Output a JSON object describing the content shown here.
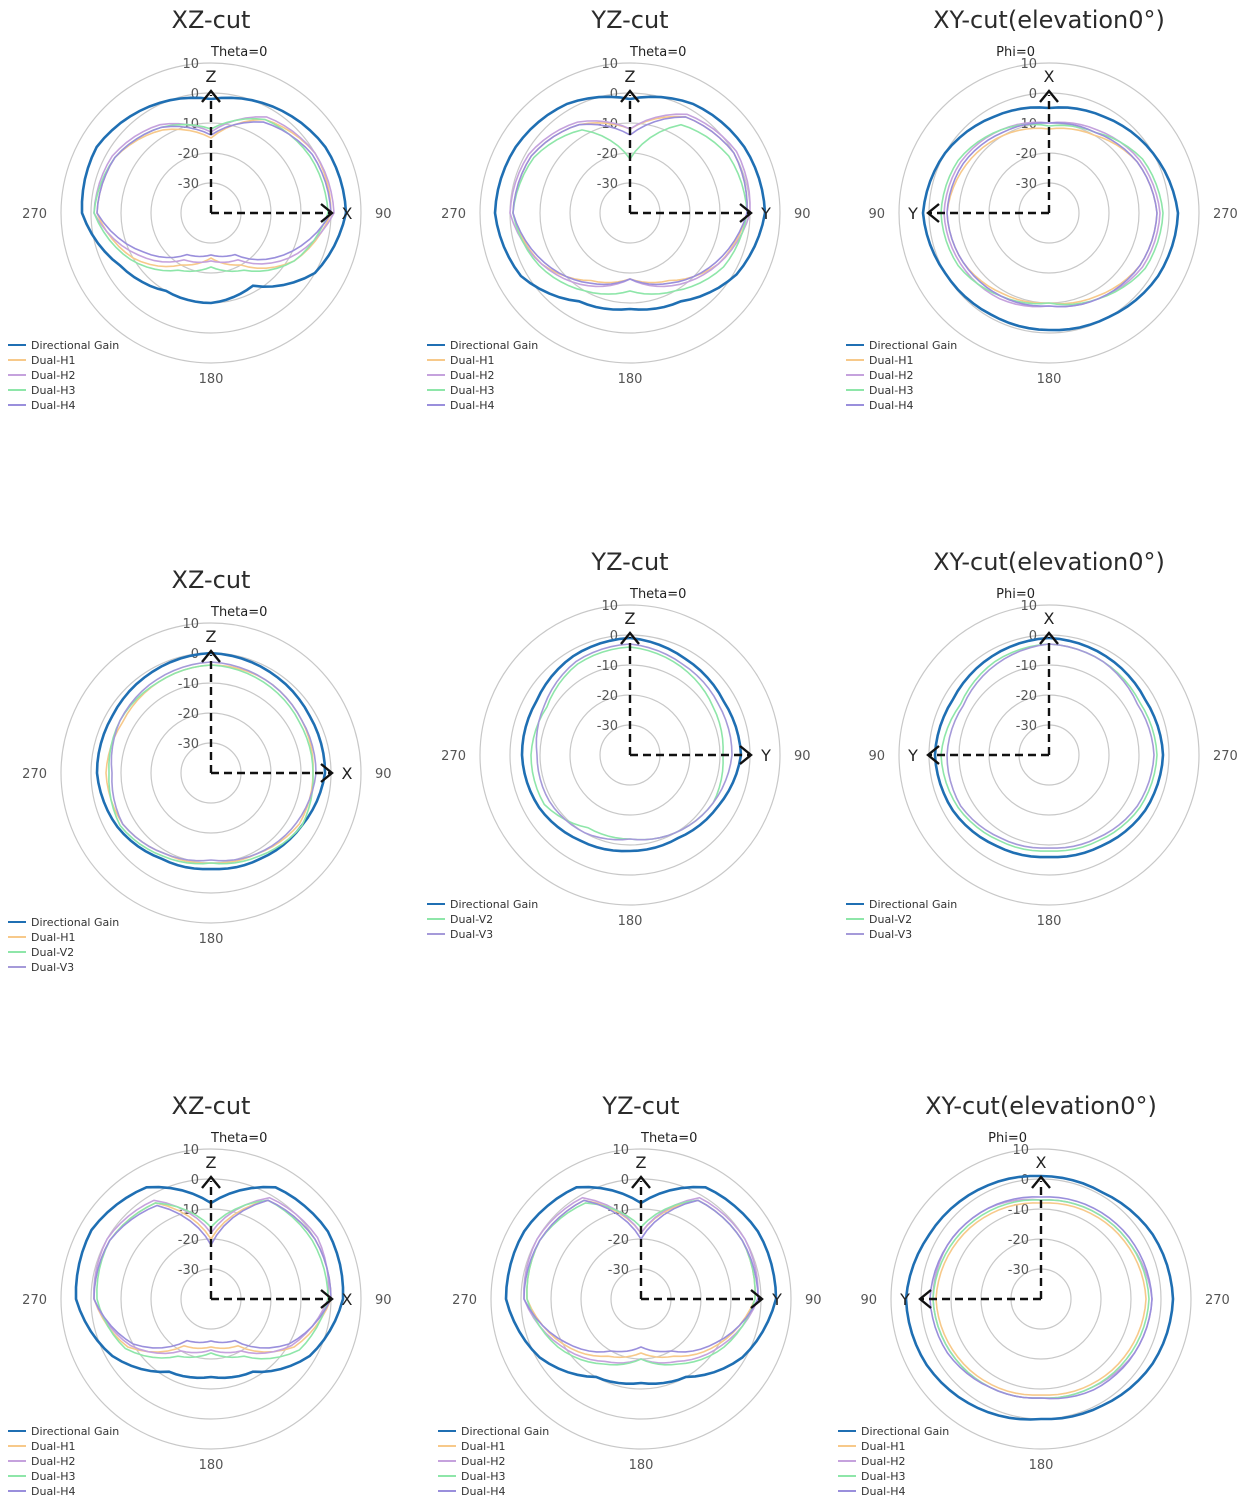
{
  "ring_db": [
    10,
    0,
    -10,
    -20,
    -30
  ],
  "axis_glyphs": {
    "z": "Z",
    "x": "X",
    "y": "Y"
  },
  "colors": {
    "Directional Gain": "#1f6fb3",
    "Dual-H1": "#f7c98a",
    "Dual-H2": "#c5a2dd",
    "Dual-H3": "#8ee6a9",
    "Dual-H4": "#9a8fdc",
    "Dual-V2": "#8ee6a9",
    "Dual-V3": "#a59ad9"
  },
  "chart_data": [
    {
      "type": "polar",
      "title": "XZ-cut",
      "zero_label": "Theta=0",
      "angle_labels": {
        "left": "270",
        "right": "90",
        "bottom": "180"
      },
      "axes": {
        "up": "Z",
        "side": "X",
        "side_dir": "right"
      },
      "rlim": [
        -40,
        10
      ],
      "rings": [
        10,
        0,
        -10,
        -20,
        -30
      ],
      "direction": "clockwise",
      "angles_deg": [
        0,
        30,
        60,
        90,
        120,
        150,
        180,
        210,
        240,
        270,
        300,
        330
      ],
      "series": [
        {
          "name": "Directional Gain",
          "values": [
            -2,
            1,
            4,
            5,
            0,
            -12,
            -10,
            -10,
            -5,
            3,
            4,
            1
          ]
        },
        {
          "name": "Dual-H1",
          "values": [
            -15,
            -4,
            0,
            0,
            -8,
            -20,
            -25,
            -20,
            -10,
            -2,
            -3,
            -8
          ]
        },
        {
          "name": "Dual-H2",
          "values": [
            -13,
            -3,
            0,
            1,
            -10,
            -22,
            -24,
            -22,
            -12,
            -1,
            -2,
            -6
          ]
        },
        {
          "name": "Dual-H3",
          "values": [
            -12,
            -4,
            -2,
            -1,
            -8,
            -18,
            -22,
            -18,
            -9,
            -1,
            -3,
            -7
          ]
        },
        {
          "name": "Dual-H4",
          "values": [
            -14,
            -5,
            -1,
            0,
            -12,
            -24,
            -26,
            -24,
            -14,
            -2,
            -3,
            -7
          ]
        }
      ]
    },
    {
      "type": "polar",
      "title": "YZ-cut",
      "zero_label": "Theta=0",
      "angle_labels": {
        "left": "270",
        "right": "90",
        "bottom": "180"
      },
      "axes": {
        "up": "Z",
        "side": "Y",
        "side_dir": "right"
      },
      "rlim": [
        -40,
        10
      ],
      "rings": [
        10,
        0,
        -10,
        -20,
        -30
      ],
      "direction": "clockwise",
      "angles_deg": [
        0,
        30,
        60,
        90,
        120,
        150,
        180,
        210,
        240,
        270,
        300,
        330
      ],
      "series": [
        {
          "name": "Directional Gain",
          "values": [
            -2,
            2,
            4,
            5,
            1,
            -6,
            -8,
            -6,
            2,
            5,
            4,
            2
          ]
        },
        {
          "name": "Dual-H1",
          "values": [
            -12,
            -3,
            0,
            -1,
            -6,
            -14,
            -18,
            -14,
            -6,
            -1,
            -2,
            -6
          ]
        },
        {
          "name": "Dual-H2",
          "values": [
            -12,
            -2,
            1,
            0,
            -6,
            -12,
            -18,
            -12,
            -6,
            0,
            -1,
            -5
          ]
        },
        {
          "name": "Dual-H3",
          "values": [
            -22,
            -6,
            -2,
            -1,
            -4,
            -10,
            -14,
            -10,
            -5,
            -1,
            -3,
            -8
          ]
        },
        {
          "name": "Dual-H4",
          "values": [
            -14,
            -3,
            0,
            -1,
            -7,
            -13,
            -18,
            -13,
            -7,
            -1,
            -2,
            -6
          ]
        }
      ]
    },
    {
      "type": "polar",
      "title": "XY-cut(elevation0°)",
      "zero_label": "Phi=0",
      "angle_labels": {
        "left": "90",
        "right": "270",
        "bottom": "180"
      },
      "axes": {
        "up": "X",
        "side": "Y",
        "side_dir": "left"
      },
      "rlim": [
        -40,
        10
      ],
      "rings": [
        10,
        0,
        -10,
        -20,
        -30
      ],
      "direction": "counterclockwise",
      "angles_deg": [
        0,
        30,
        60,
        90,
        120,
        150,
        180,
        210,
        240,
        270,
        300,
        330
      ],
      "series": [
        {
          "name": "Directional Gain",
          "values": [
            -5,
            -3,
            0,
            2,
            0,
            -1,
            -1,
            0,
            2,
            3,
            0,
            -3
          ]
        },
        {
          "name": "Dual-H1",
          "values": [
            -12,
            -10,
            -8,
            -6,
            -7,
            -9,
            -10,
            -8,
            -5,
            -4,
            -6,
            -10
          ]
        },
        {
          "name": "Dual-H2",
          "values": [
            -10,
            -8,
            -6,
            -5,
            -6,
            -7,
            -9,
            -7,
            -4,
            -3,
            -5,
            -8
          ]
        },
        {
          "name": "Dual-H3",
          "values": [
            -11,
            -8,
            -5,
            -4,
            -5,
            -8,
            -10,
            -7,
            -3,
            -2,
            -4,
            -9
          ]
        },
        {
          "name": "Dual-H4",
          "values": [
            -10,
            -9,
            -7,
            -6,
            -7,
            -8,
            -9,
            -7,
            -5,
            -4,
            -6,
            -9
          ]
        }
      ]
    },
    {
      "type": "polar",
      "title": "XZ-cut",
      "zero_label": "Theta=0",
      "angle_labels": {
        "left": "270",
        "right": "90",
        "bottom": "180"
      },
      "axes": {
        "up": "Z",
        "side": "X",
        "side_dir": "right"
      },
      "rlim": [
        -40,
        10
      ],
      "rings": [
        10,
        0,
        -10,
        -20,
        -30
      ],
      "direction": "clockwise",
      "angles_deg": [
        0,
        30,
        60,
        90,
        120,
        150,
        180,
        210,
        240,
        270,
        300,
        330
      ],
      "series": [
        {
          "name": "Directional Gain",
          "values": [
            0,
            -1,
            -2,
            -2,
            -5,
            -7,
            -8,
            -7,
            -4,
            -2,
            -2,
            -1
          ]
        },
        {
          "name": "Dual-H1",
          "values": [
            -4,
            -4,
            -5,
            -6,
            -6,
            -9,
            -10,
            -9,
            -6,
            -5,
            -6,
            -5
          ]
        },
        {
          "name": "Dual-V2",
          "values": [
            -4,
            -5,
            -6,
            -6,
            -5,
            -8,
            -10,
            -8,
            -5,
            -6,
            -5,
            -5
          ]
        },
        {
          "name": "Dual-V3",
          "values": [
            -3,
            -4,
            -5,
            -5,
            -7,
            -9,
            -11,
            -9,
            -6,
            -7,
            -5,
            -4
          ]
        }
      ]
    },
    {
      "type": "polar",
      "title": "YZ-cut",
      "zero_label": "Theta=0",
      "angle_labels": {
        "left": "270",
        "right": "90",
        "bottom": "180"
      },
      "axes": {
        "up": "Z",
        "side": "Y",
        "side_dir": "right"
      },
      "rlim": [
        -40,
        10
      ],
      "rings": [
        10,
        0,
        -10,
        -20,
        -30
      ],
      "direction": "clockwise",
      "angles_deg": [
        0,
        30,
        60,
        90,
        120,
        150,
        180,
        210,
        240,
        270,
        300,
        330
      ],
      "series": [
        {
          "name": "Directional Gain",
          "values": [
            -1,
            -3,
            -4,
            -3,
            -6,
            -8,
            -8,
            -7,
            -5,
            -4,
            -4,
            -2
          ]
        },
        {
          "name": "Dual-V2",
          "values": [
            -4,
            -6,
            -8,
            -9,
            -8,
            -10,
            -12,
            -12,
            -7,
            -7,
            -8,
            -5
          ]
        },
        {
          "name": "Dual-V3",
          "values": [
            -3,
            -5,
            -6,
            -6,
            -8,
            -10,
            -12,
            -10,
            -9,
            -9,
            -7,
            -4
          ]
        }
      ]
    },
    {
      "type": "polar",
      "title": "XY-cut(elevation0°)",
      "zero_label": "Phi=0",
      "angle_labels": {
        "left": "90",
        "right": "270",
        "bottom": "180"
      },
      "axes": {
        "up": "X",
        "side": "Y",
        "side_dir": "left"
      },
      "rlim": [
        -40,
        10
      ],
      "rings": [
        10,
        0,
        -10,
        -20,
        -30
      ],
      "direction": "counterclockwise",
      "angles_deg": [
        0,
        30,
        60,
        90,
        120,
        150,
        180,
        210,
        240,
        270,
        300,
        330
      ],
      "series": [
        {
          "name": "Directional Gain",
          "values": [
            -1,
            -2,
            -3,
            -2,
            -3,
            -5,
            -6,
            -5,
            -3,
            -2,
            -3,
            -2
          ]
        },
        {
          "name": "Dual-V2",
          "values": [
            -3,
            -4,
            -6,
            -4,
            -5,
            -7,
            -8,
            -7,
            -5,
            -4,
            -5,
            -4
          ]
        },
        {
          "name": "Dual-V3",
          "values": [
            -3,
            -5,
            -7,
            -6,
            -6,
            -8,
            -9,
            -8,
            -6,
            -5,
            -6,
            -4
          ]
        }
      ]
    },
    {
      "type": "polar",
      "title": "XZ-cut",
      "zero_label": "Theta=0",
      "angle_labels": {
        "left": "270",
        "right": "90",
        "bottom": "180"
      },
      "axes": {
        "up": "Z",
        "side": "X",
        "side_dir": "right"
      },
      "rlim": [
        -40,
        10
      ],
      "rings": [
        10,
        0,
        -10,
        -20,
        -30
      ],
      "direction": "clockwise",
      "angles_deg": [
        0,
        30,
        60,
        90,
        120,
        150,
        180,
        210,
        240,
        270,
        300,
        330
      ],
      "series": [
        {
          "name": "Directional Gain",
          "values": [
            -8,
            3,
            5,
            4,
            -2,
            -12,
            -14,
            -12,
            -2,
            5,
            6,
            3
          ]
        },
        {
          "name": "Dual-H1",
          "values": [
            -20,
            -2,
            0,
            0,
            -8,
            -22,
            -24,
            -22,
            -8,
            -1,
            -1,
            -3
          ]
        },
        {
          "name": "Dual-H2",
          "values": [
            -18,
            -1,
            1,
            -1,
            -9,
            -20,
            -23,
            -20,
            -9,
            -1,
            0,
            -2
          ]
        },
        {
          "name": "Dual-H3",
          "values": [
            -16,
            -2,
            -1,
            -1,
            -6,
            -18,
            -22,
            -18,
            -7,
            -2,
            -1,
            -3
          ]
        },
        {
          "name": "Dual-H4",
          "values": [
            -22,
            -2,
            0,
            0,
            -10,
            -24,
            -26,
            -24,
            -10,
            -1,
            -1,
            -4
          ]
        }
      ]
    },
    {
      "type": "polar",
      "title": "YZ-cut",
      "zero_label": "Theta=0",
      "angle_labels": {
        "left": "270",
        "right": "90",
        "bottom": "180"
      },
      "axes": {
        "up": "Z",
        "side": "Y",
        "side_dir": "right"
      },
      "rlim": [
        -40,
        10
      ],
      "rings": [
        10,
        0,
        -10,
        -20,
        -30
      ],
      "direction": "clockwise",
      "angles_deg": [
        0,
        30,
        60,
        90,
        120,
        150,
        180,
        210,
        240,
        270,
        300,
        330
      ],
      "series": [
        {
          "name": "Directional Gain",
          "values": [
            -8,
            3,
            5,
            5,
            -1,
            -10,
            -12,
            -10,
            -1,
            5,
            5,
            3
          ]
        },
        {
          "name": "Dual-H1",
          "values": [
            -18,
            -2,
            -1,
            -2,
            -10,
            -18,
            -22,
            -18,
            -10,
            -2,
            -1,
            -2
          ]
        },
        {
          "name": "Dual-H2",
          "values": [
            -18,
            -1,
            0,
            -1,
            -9,
            -16,
            -20,
            -16,
            -9,
            -1,
            0,
            -1
          ]
        },
        {
          "name": "Dual-H3",
          "values": [
            -16,
            -2,
            -1,
            -2,
            -8,
            -15,
            -20,
            -15,
            -8,
            -2,
            -1,
            -3
          ]
        },
        {
          "name": "Dual-H4",
          "values": [
            -20,
            -2,
            -1,
            -1,
            -11,
            -20,
            -24,
            -20,
            -11,
            -1,
            -1,
            -2
          ]
        }
      ]
    },
    {
      "type": "polar",
      "title": "XY-cut(elevation0°)",
      "zero_label": "Phi=0",
      "angle_labels": {
        "left": "90",
        "right": "270",
        "bottom": "180"
      },
      "axes": {
        "up": "X",
        "side": "Y",
        "side_dir": "left"
      },
      "rlim": [
        -40,
        10
      ],
      "rings": [
        10,
        0,
        -10,
        -20,
        -30
      ],
      "direction": "counterclockwise",
      "angles_deg": [
        0,
        30,
        60,
        90,
        120,
        150,
        180,
        210,
        240,
        270,
        300,
        330
      ],
      "series": [
        {
          "name": "Directional Gain",
          "values": [
            1,
            2,
            3,
            5,
            4,
            2,
            0,
            1,
            3,
            4,
            3,
            1
          ]
        },
        {
          "name": "Dual-H1",
          "values": [
            -8,
            -7,
            -6,
            -5,
            -6,
            -7,
            -8,
            -7,
            -6,
            -5,
            -6,
            -7
          ]
        },
        {
          "name": "Dual-H2",
          "values": [
            -7,
            -5,
            -4,
            -4,
            -5,
            -6,
            -7,
            -6,
            -4,
            -3,
            -5,
            -6
          ]
        },
        {
          "name": "Dual-H3",
          "values": [
            -7,
            -6,
            -5,
            -4,
            -5,
            -6,
            -7,
            -6,
            -5,
            -4,
            -5,
            -6
          ]
        },
        {
          "name": "Dual-H4",
          "values": [
            -6,
            -5,
            -4,
            -3,
            -4,
            -6,
            -7,
            -5,
            -4,
            -3,
            -4,
            -5
          ]
        }
      ]
    }
  ]
}
